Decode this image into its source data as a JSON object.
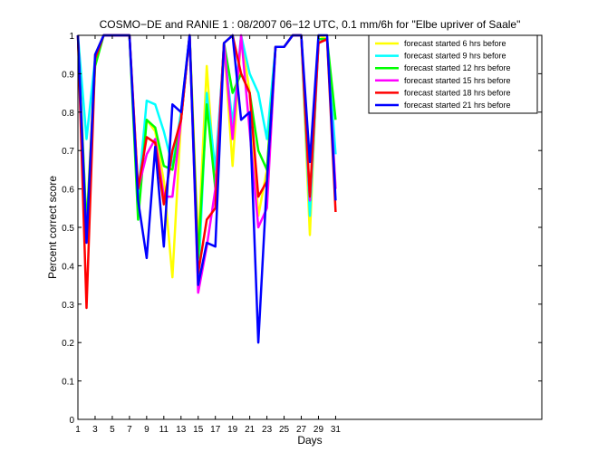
{
  "chart_data": {
    "type": "line",
    "title": "COSMO−DE and RANIE 1 : 08/2007 06−12 UTC, 0.1 mm/6h for \"Elbe upriver of Saale\"",
    "xlabel": "Days",
    "ylabel": "Percent correct score",
    "xlim": [
      1,
      55
    ],
    "ylim": [
      0,
      1
    ],
    "xticks": [
      1,
      3,
      5,
      7,
      9,
      11,
      13,
      15,
      17,
      19,
      21,
      23,
      25,
      27,
      29,
      31
    ],
    "yticks": [
      0,
      0.1,
      0.2,
      0.3,
      0.4,
      0.5,
      0.6,
      0.7,
      0.8,
      0.9,
      1
    ],
    "ytick_labels": [
      "0",
      "0.1",
      "0.2",
      "0.3",
      "0.4",
      "0.5",
      "0.6",
      "0.7",
      "0.8",
      "0.9",
      "1"
    ],
    "grid": false,
    "legend_position": "top-right",
    "x": [
      1,
      2,
      3,
      4,
      5,
      6,
      7,
      8,
      9,
      10,
      11,
      12,
      13,
      14,
      15,
      16,
      17,
      18,
      19,
      20,
      21,
      22,
      23,
      24,
      25,
      26,
      27,
      28,
      29,
      30,
      31
    ],
    "series": [
      {
        "name": "forecast started 6 hrs before",
        "color": "#ffff00",
        "values": [
          1.0,
          0.5,
          0.95,
          1.0,
          1.0,
          1.0,
          1.0,
          0.55,
          0.78,
          0.75,
          0.62,
          0.37,
          0.78,
          1.0,
          0.45,
          0.92,
          0.6,
          0.98,
          0.66,
          1.0,
          0.85,
          0.53,
          0.65,
          0.97,
          0.97,
          1.0,
          1.0,
          0.48,
          1.0,
          0.99,
          0.6
        ]
      },
      {
        "name": "forecast started 9 hrs before",
        "color": "#00ffff",
        "values": [
          1.0,
          0.73,
          0.94,
          1.0,
          1.0,
          1.0,
          1.0,
          0.58,
          0.83,
          0.82,
          0.75,
          0.66,
          0.8,
          1.0,
          0.35,
          0.85,
          0.65,
          0.97,
          0.77,
          1.0,
          0.9,
          0.85,
          0.73,
          0.97,
          0.97,
          1.0,
          1.0,
          0.53,
          0.98,
          0.99,
          0.69
        ]
      },
      {
        "name": "forecast started 12 hrs before",
        "color": "#00ff00",
        "values": [
          1.0,
          0.5,
          0.92,
          1.0,
          1.0,
          1.0,
          1.0,
          0.52,
          0.78,
          0.76,
          0.66,
          0.65,
          0.78,
          1.0,
          0.42,
          0.82,
          0.6,
          0.98,
          0.85,
          0.9,
          0.85,
          0.7,
          0.65,
          0.97,
          0.97,
          1.0,
          1.0,
          0.57,
          0.99,
          0.99,
          0.78
        ]
      },
      {
        "name": "forecast started 15 hrs before",
        "color": "#ff00ff",
        "values": [
          1.0,
          0.46,
          0.94,
          1.0,
          1.0,
          1.0,
          1.0,
          0.6,
          0.69,
          0.73,
          0.58,
          0.58,
          0.78,
          1.0,
          0.33,
          0.45,
          0.6,
          0.98,
          0.73,
          1.0,
          0.75,
          0.5,
          0.55,
          0.97,
          0.97,
          1.0,
          1.0,
          0.57,
          0.98,
          0.99,
          0.6
        ]
      },
      {
        "name": "forecast started 18 hrs before",
        "color": "#ff0000",
        "values": [
          1.0,
          0.29,
          0.94,
          1.0,
          1.0,
          1.0,
          1.0,
          0.6,
          0.735,
          0.72,
          0.56,
          0.7,
          0.78,
          1.0,
          0.38,
          0.52,
          0.55,
          0.98,
          1.0,
          0.9,
          0.85,
          0.58,
          0.62,
          0.97,
          0.97,
          1.0,
          1.0,
          0.58,
          0.98,
          0.99,
          0.54
        ]
      },
      {
        "name": "forecast started 21 hrs before",
        "color": "#0000ff",
        "values": [
          1.0,
          0.46,
          0.95,
          1.0,
          1.0,
          1.0,
          1.0,
          0.57,
          0.42,
          0.71,
          0.45,
          0.82,
          0.8,
          1.0,
          0.35,
          0.46,
          0.45,
          0.98,
          1.0,
          0.78,
          0.8,
          0.2,
          0.62,
          0.97,
          0.97,
          1.0,
          1.0,
          0.67,
          1.0,
          1.0,
          0.57
        ]
      }
    ]
  }
}
